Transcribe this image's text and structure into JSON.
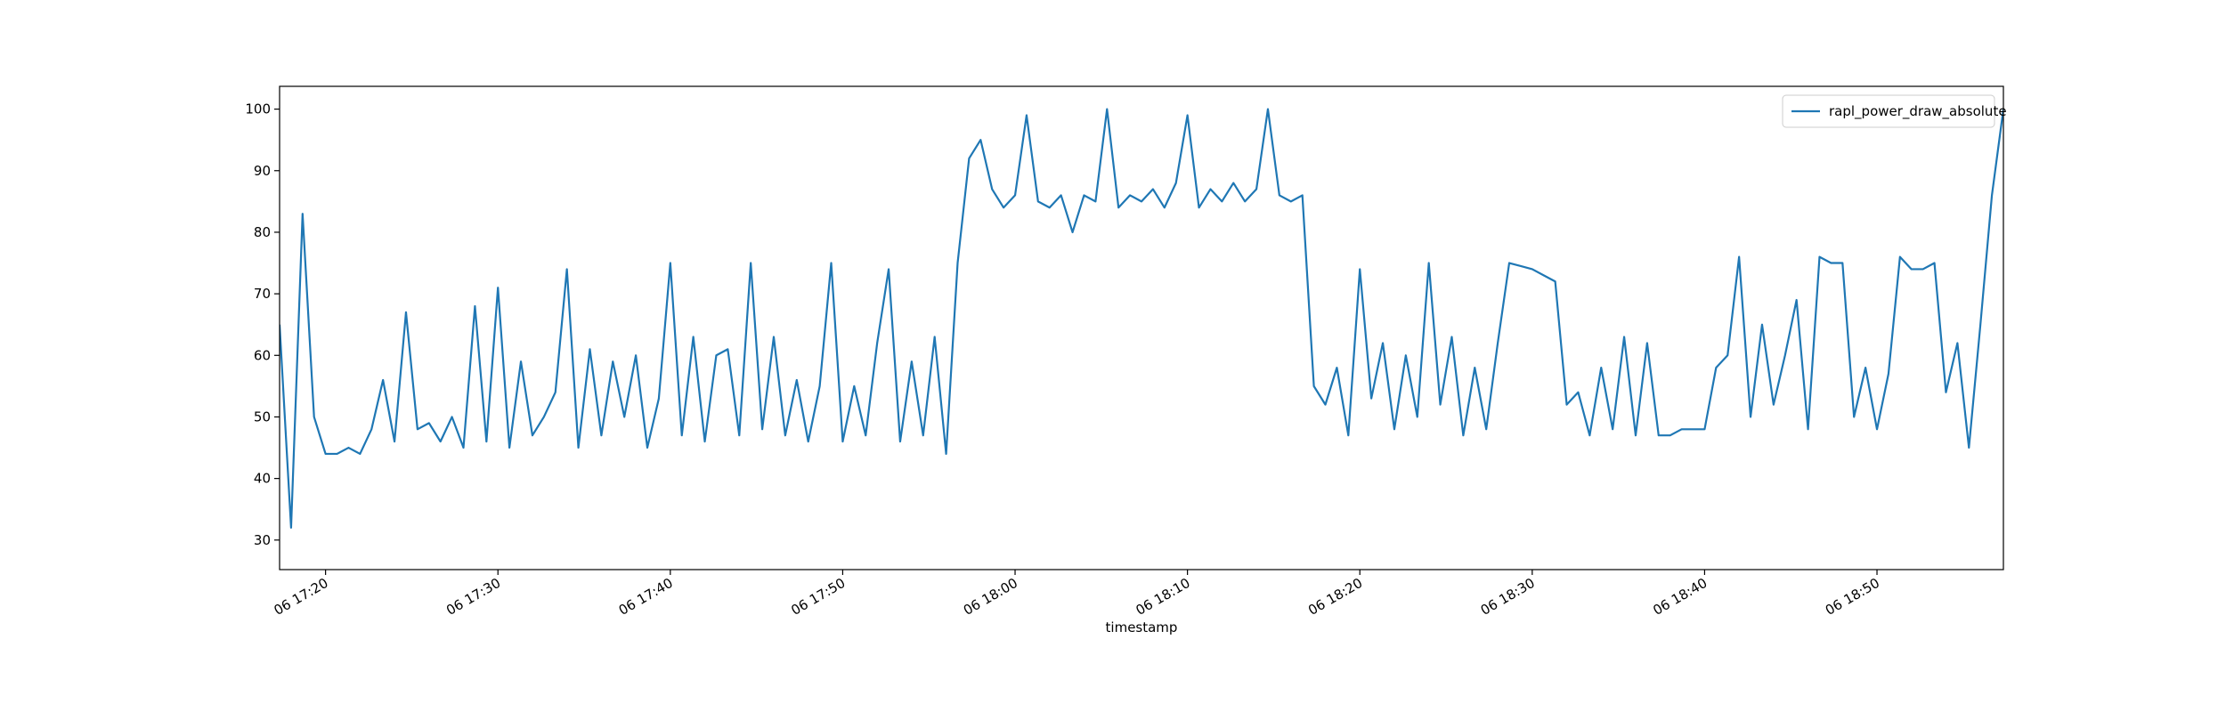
{
  "chart_data": {
    "type": "line",
    "xlabel": "timestamp",
    "x": [
      "17:17:20",
      "17:18:00",
      "17:18:40",
      "17:19:20",
      "17:20:00",
      "17:20:40",
      "17:21:20",
      "17:22:00",
      "17:22:40",
      "17:23:20",
      "17:24:00",
      "17:24:40",
      "17:25:20",
      "17:26:00",
      "17:26:40",
      "17:27:20",
      "17:28:00",
      "17:28:40",
      "17:29:20",
      "17:30:00",
      "17:30:40",
      "17:31:20",
      "17:32:00",
      "17:32:40",
      "17:33:20",
      "17:34:00",
      "17:34:40",
      "17:35:20",
      "17:36:00",
      "17:36:40",
      "17:37:20",
      "17:38:00",
      "17:38:40",
      "17:39:20",
      "17:40:00",
      "17:40:40",
      "17:41:20",
      "17:42:00",
      "17:42:40",
      "17:43:20",
      "17:44:00",
      "17:44:40",
      "17:45:20",
      "17:46:00",
      "17:46:40",
      "17:47:20",
      "17:48:00",
      "17:48:40",
      "17:49:20",
      "17:50:00",
      "17:50:40",
      "17:51:20",
      "17:52:00",
      "17:52:40",
      "17:53:20",
      "17:54:00",
      "17:54:40",
      "17:55:20",
      "17:56:00",
      "17:56:40",
      "17:57:20",
      "17:58:00",
      "17:58:40",
      "17:59:20",
      "18:00:00",
      "18:00:40",
      "18:01:20",
      "18:02:00",
      "18:02:40",
      "18:03:20",
      "18:04:00",
      "18:04:40",
      "18:05:20",
      "18:06:00",
      "18:06:40",
      "18:07:20",
      "18:08:00",
      "18:08:40",
      "18:09:20",
      "18:10:00",
      "18:10:40",
      "18:11:20",
      "18:12:00",
      "18:12:40",
      "18:13:20",
      "18:14:00",
      "18:14:40",
      "18:15:20",
      "18:16:00",
      "18:16:40",
      "18:17:20",
      "18:18:00",
      "18:18:40",
      "18:19:20",
      "18:20:00",
      "18:20:40",
      "18:21:20",
      "18:22:00",
      "18:22:40",
      "18:23:20",
      "18:24:00",
      "18:24:40",
      "18:25:20",
      "18:26:00",
      "18:26:40",
      "18:27:20",
      "18:28:00",
      "18:28:40",
      "18:29:20",
      "18:30:00",
      "18:30:40",
      "18:31:20",
      "18:32:00",
      "18:32:40",
      "18:33:20",
      "18:34:00",
      "18:34:40",
      "18:35:20",
      "18:36:00",
      "18:36:40",
      "18:37:20",
      "18:38:00",
      "18:38:40",
      "18:39:20",
      "18:40:00",
      "18:40:40",
      "18:41:20",
      "18:42:00",
      "18:42:40",
      "18:43:20",
      "18:44:00",
      "18:44:40",
      "18:45:20",
      "18:46:00",
      "18:46:40",
      "18:47:20",
      "18:48:00",
      "18:48:40",
      "18:49:20",
      "18:50:00",
      "18:50:40",
      "18:51:20",
      "18:52:00",
      "18:52:40",
      "18:53:20",
      "18:54:00",
      "18:54:40",
      "18:55:20",
      "18:56:00",
      "18:56:40",
      "18:57:20"
    ],
    "series": [
      {
        "name": "rapl_power_draw_absolute",
        "color": "#1f77b4",
        "values": [
          65,
          32,
          83,
          50,
          44,
          44,
          45,
          44,
          48,
          56,
          46,
          67,
          48,
          49,
          46,
          50,
          45,
          68,
          46,
          71,
          45,
          59,
          47,
          50,
          54,
          74,
          45,
          61,
          47,
          59,
          50,
          60,
          45,
          53,
          75,
          47,
          63,
          46,
          60,
          61,
          47,
          75,
          48,
          63,
          47,
          56,
          46,
          55,
          75,
          46,
          55,
          47,
          62,
          74,
          46,
          59,
          47,
          63,
          44,
          75,
          92,
          95,
          87,
          84,
          86,
          99,
          85,
          84,
          86,
          80,
          86,
          85,
          100,
          84,
          86,
          85,
          87,
          84,
          88,
          99,
          84,
          87,
          85,
          88,
          85,
          87,
          100,
          86,
          85,
          86,
          55,
          52,
          58,
          47,
          74,
          53,
          62,
          48,
          60,
          50,
          75,
          52,
          63,
          47,
          58,
          48,
          62,
          75,
          74.5,
          74,
          73,
          72,
          52,
          54,
          47,
          58,
          48,
          63,
          47,
          62,
          47,
          47,
          48,
          48,
          48,
          58,
          60,
          76,
          50,
          65,
          52,
          60,
          69,
          48,
          76,
          75,
          75,
          50,
          58,
          48,
          57,
          76,
          74,
          74,
          75,
          54,
          62,
          45,
          65,
          86,
          100
        ]
      }
    ],
    "xlim": [
      "17:17:20",
      "18:57:20"
    ],
    "xticks": [
      {
        "value": "17:20:00",
        "label": "06 17:20"
      },
      {
        "value": "17:30:00",
        "label": "06 17:30"
      },
      {
        "value": "17:40:00",
        "label": "06 17:40"
      },
      {
        "value": "17:50:00",
        "label": "06 17:50"
      },
      {
        "value": "18:00:00",
        "label": "06 18:00"
      },
      {
        "value": "18:10:00",
        "label": "06 18:10"
      },
      {
        "value": "18:20:00",
        "label": "06 18:20"
      },
      {
        "value": "18:30:00",
        "label": "06 18:30"
      },
      {
        "value": "18:40:00",
        "label": "06 18:40"
      },
      {
        "value": "18:50:00",
        "label": "06 18:50"
      }
    ],
    "ylim": [
      25.2,
      103.7
    ],
    "yticks": [
      30,
      40,
      50,
      60,
      70,
      80,
      90,
      100
    ],
    "legend": "upper right"
  }
}
